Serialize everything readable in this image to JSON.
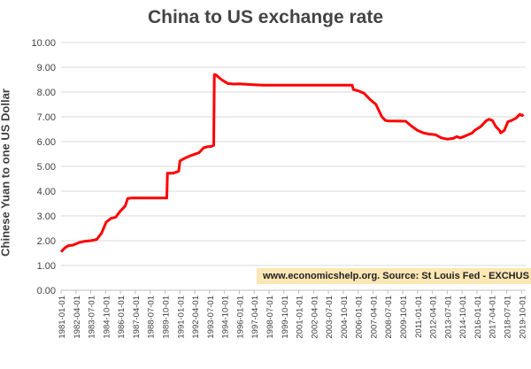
{
  "chart_data": {
    "type": "line",
    "title": "China to US exchange rate",
    "xlabel": "",
    "ylabel": "Chinese Yuan to one US Dollar",
    "ylim": [
      0,
      10
    ],
    "yticks": [
      "0.00",
      "1.00",
      "2.00",
      "3.00",
      "4.00",
      "5.00",
      "6.00",
      "7.00",
      "8.00",
      "9.00",
      "10.00"
    ],
    "xticks": [
      "1981-01-01",
      "1982-04-01",
      "1983-07-01",
      "1984-10-01",
      "1986-01-01",
      "1987-04-01",
      "1988-07-01",
      "1989-10-01",
      "1991-01-01",
      "1992-04-01",
      "1993-07-01",
      "1994-10-01",
      "1996-01-01",
      "1997-04-01",
      "1998-07-01",
      "1999-10-01",
      "2001-01-01",
      "2002-04-01",
      "2003-07-01",
      "2004-10-01",
      "2006-01-01",
      "2007-04-01",
      "2008-07-01",
      "2009-10-01",
      "2011-01-01",
      "2012-04-01",
      "2013-07-01",
      "2014-10-01",
      "2016-01-01",
      "2017-04-01",
      "2018-07-01",
      "2019-10-01"
    ],
    "grid": true,
    "line_color": "#ff0000",
    "annotation": "www.economicshelp.org. Source: St Louis Fed - EXCHUS",
    "series": [
      {
        "x": [
          1981.0,
          1981.3,
          1981.6,
          1982.0,
          1982.5,
          1983.0,
          1983.5,
          1984.0,
          1984.4,
          1984.8,
          1985.2,
          1985.6,
          1986.0,
          1986.4,
          1986.6,
          1986.9,
          1987.5,
          1988.5,
          1989.5,
          1989.9,
          1989.95,
          1990.4,
          1990.9,
          1991.0,
          1991.5,
          1992.0,
          1992.6,
          1993.0,
          1993.4,
          1993.6,
          1993.85,
          1993.9,
          1994.0,
          1994.5,
          1995.0,
          1995.5,
          1996.0,
          1997.0,
          1998.0,
          1999.0,
          2000.0,
          2001.0,
          2002.0,
          2003.0,
          2004.0,
          2005.5,
          2005.6,
          2006.0,
          2006.5,
          2007.0,
          2007.5,
          2008.0,
          2008.3,
          2008.6,
          2009.0,
          2010.0,
          2010.5,
          2011.0,
          2011.5,
          2012.0,
          2012.5,
          2013.0,
          2013.5,
          2014.0,
          2014.3,
          2014.6,
          2015.0,
          2015.6,
          2015.8,
          2016.3,
          2016.8,
          2017.0,
          2017.3,
          2017.6,
          2017.9,
          2018.0,
          2018.3,
          2018.6,
          2018.9,
          2019.3,
          2019.6,
          2019.8,
          2019.9
        ],
        "y": [
          1.55,
          1.7,
          1.8,
          1.82,
          1.92,
          1.98,
          2.0,
          2.05,
          2.3,
          2.75,
          2.9,
          2.95,
          3.2,
          3.4,
          3.7,
          3.72,
          3.72,
          3.72,
          3.72,
          3.72,
          4.72,
          4.72,
          4.8,
          5.22,
          5.35,
          5.45,
          5.55,
          5.75,
          5.8,
          5.8,
          5.85,
          8.7,
          8.7,
          8.5,
          8.35,
          8.32,
          8.33,
          8.3,
          8.28,
          8.28,
          8.28,
          8.28,
          8.28,
          8.28,
          8.28,
          8.28,
          8.1,
          8.05,
          7.95,
          7.7,
          7.5,
          7.0,
          6.85,
          6.83,
          6.83,
          6.82,
          6.62,
          6.45,
          6.35,
          6.3,
          6.28,
          6.15,
          6.1,
          6.13,
          6.2,
          6.15,
          6.22,
          6.35,
          6.45,
          6.6,
          6.85,
          6.9,
          6.85,
          6.6,
          6.45,
          6.35,
          6.45,
          6.8,
          6.85,
          6.95,
          7.1,
          7.05,
          7.1
        ]
      }
    ]
  }
}
